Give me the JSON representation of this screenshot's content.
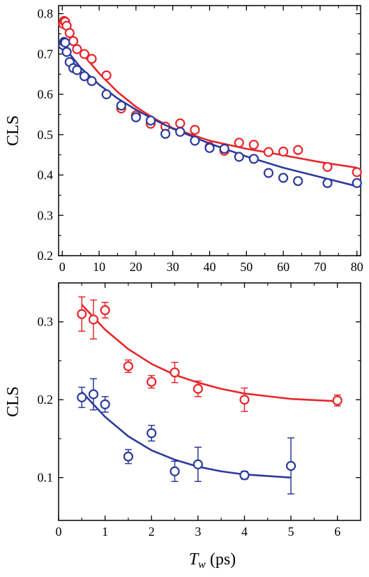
{
  "chart_data": [
    {
      "type": "scatter",
      "xlabel": "",
      "ylabel": "CLS",
      "xlim": [
        -1,
        81
      ],
      "ylim": [
        0.2,
        0.82
      ],
      "xticks": [
        0,
        10,
        20,
        30,
        40,
        50,
        60,
        70,
        80
      ],
      "yticks": [
        0.2,
        0.3,
        0.4,
        0.5,
        0.6,
        0.7,
        0.8
      ],
      "grid": false,
      "series": [
        {
          "color": "#e8262a",
          "marker": "open-circle",
          "points": [
            {
              "x": 0.2,
              "y": 0.775
            },
            {
              "x": 0.5,
              "y": 0.782
            },
            {
              "x": 0.8,
              "y": 0.78
            },
            {
              "x": 1.2,
              "y": 0.77
            },
            {
              "x": 2,
              "y": 0.752
            },
            {
              "x": 3,
              "y": 0.732
            },
            {
              "x": 4,
              "y": 0.712
            },
            {
              "x": 6,
              "y": 0.7
            },
            {
              "x": 8,
              "y": 0.688
            },
            {
              "x": 12,
              "y": 0.647
            },
            {
              "x": 16,
              "y": 0.565
            },
            {
              "x": 20,
              "y": 0.548
            },
            {
              "x": 24,
              "y": 0.527
            },
            {
              "x": 28,
              "y": 0.52
            },
            {
              "x": 32,
              "y": 0.528
            },
            {
              "x": 36,
              "y": 0.512
            },
            {
              "x": 40,
              "y": 0.47
            },
            {
              "x": 44,
              "y": 0.46
            },
            {
              "x": 48,
              "y": 0.48
            },
            {
              "x": 52,
              "y": 0.475
            },
            {
              "x": 56,
              "y": 0.457
            },
            {
              "x": 60,
              "y": 0.458
            },
            {
              "x": 64,
              "y": 0.462
            },
            {
              "x": 72,
              "y": 0.42
            },
            {
              "x": 80,
              "y": 0.407
            }
          ],
          "fit_curve": [
            {
              "x": 0,
              "y": 0.775
            },
            {
              "x": 2,
              "y": 0.745
            },
            {
              "x": 5,
              "y": 0.706
            },
            {
              "x": 10,
              "y": 0.652
            },
            {
              "x": 15,
              "y": 0.606
            },
            {
              "x": 20,
              "y": 0.569
            },
            {
              "x": 25,
              "y": 0.54
            },
            {
              "x": 30,
              "y": 0.516
            },
            {
              "x": 40,
              "y": 0.485
            },
            {
              "x": 50,
              "y": 0.465
            },
            {
              "x": 60,
              "y": 0.449
            },
            {
              "x": 70,
              "y": 0.432
            },
            {
              "x": 80,
              "y": 0.418
            }
          ]
        },
        {
          "color": "#2b3a9b",
          "marker": "open-circle",
          "points": [
            {
              "x": 0.2,
              "y": 0.722
            },
            {
              "x": 0.5,
              "y": 0.73
            },
            {
              "x": 0.8,
              "y": 0.728
            },
            {
              "x": 1.2,
              "y": 0.705
            },
            {
              "x": 2,
              "y": 0.68
            },
            {
              "x": 3,
              "y": 0.665
            },
            {
              "x": 4,
              "y": 0.66
            },
            {
              "x": 6,
              "y": 0.645
            },
            {
              "x": 8,
              "y": 0.633
            },
            {
              "x": 12,
              "y": 0.6
            },
            {
              "x": 16,
              "y": 0.572
            },
            {
              "x": 20,
              "y": 0.543
            },
            {
              "x": 24,
              "y": 0.535
            },
            {
              "x": 28,
              "y": 0.502
            },
            {
              "x": 32,
              "y": 0.507
            },
            {
              "x": 36,
              "y": 0.485
            },
            {
              "x": 40,
              "y": 0.467
            },
            {
              "x": 44,
              "y": 0.465
            },
            {
              "x": 48,
              "y": 0.445
            },
            {
              "x": 52,
              "y": 0.44
            },
            {
              "x": 56,
              "y": 0.405
            },
            {
              "x": 60,
              "y": 0.393
            },
            {
              "x": 64,
              "y": 0.385
            },
            {
              "x": 72,
              "y": 0.38
            },
            {
              "x": 80,
              "y": 0.38
            }
          ],
          "fit_curve": [
            {
              "x": 0,
              "y": 0.73
            },
            {
              "x": 2,
              "y": 0.7
            },
            {
              "x": 5,
              "y": 0.666
            },
            {
              "x": 10,
              "y": 0.624
            },
            {
              "x": 15,
              "y": 0.59
            },
            {
              "x": 20,
              "y": 0.562
            },
            {
              "x": 25,
              "y": 0.537
            },
            {
              "x": 30,
              "y": 0.515
            },
            {
              "x": 40,
              "y": 0.478
            },
            {
              "x": 50,
              "y": 0.446
            },
            {
              "x": 60,
              "y": 0.418
            },
            {
              "x": 70,
              "y": 0.395
            },
            {
              "x": 80,
              "y": 0.372
            }
          ]
        }
      ]
    },
    {
      "type": "scatter",
      "xlabel": "T_w (ps)",
      "xlabel_main": "T",
      "xlabel_sub": "w",
      "xlabel_unit": " (ps)",
      "ylabel": "CLS",
      "xlim": [
        0,
        6.5
      ],
      "ylim": [
        0.045,
        0.35
      ],
      "xticks": [
        0,
        1,
        2,
        3,
        4,
        5,
        6
      ],
      "yticks": [
        0.1,
        0.2,
        0.3
      ],
      "grid": false,
      "series": [
        {
          "color": "#e8262a",
          "marker": "open-circle",
          "points": [
            {
              "x": 0.5,
              "y": 0.31,
              "err": 0.022
            },
            {
              "x": 0.75,
              "y": 0.303,
              "err": 0.025
            },
            {
              "x": 1.0,
              "y": 0.315,
              "err": 0.01
            },
            {
              "x": 1.5,
              "y": 0.243,
              "err": 0.008
            },
            {
              "x": 2.0,
              "y": 0.223,
              "err": 0.008
            },
            {
              "x": 2.5,
              "y": 0.235,
              "err": 0.013
            },
            {
              "x": 3.0,
              "y": 0.214,
              "err": 0.01
            },
            {
              "x": 4.0,
              "y": 0.2,
              "err": 0.015
            },
            {
              "x": 6.0,
              "y": 0.199,
              "err": 0.007
            }
          ],
          "fit_curve": [
            {
              "x": 0.5,
              "y": 0.322
            },
            {
              "x": 1.0,
              "y": 0.29
            },
            {
              "x": 1.5,
              "y": 0.265
            },
            {
              "x": 2.0,
              "y": 0.246
            },
            {
              "x": 2.5,
              "y": 0.232
            },
            {
              "x": 3.0,
              "y": 0.222
            },
            {
              "x": 3.5,
              "y": 0.214
            },
            {
              "x": 4.0,
              "y": 0.208
            },
            {
              "x": 5.0,
              "y": 0.201
            },
            {
              "x": 6.0,
              "y": 0.198
            }
          ]
        },
        {
          "color": "#2b3a9b",
          "marker": "open-circle",
          "points": [
            {
              "x": 0.5,
              "y": 0.203,
              "err": 0.013
            },
            {
              "x": 0.75,
              "y": 0.207,
              "err": 0.02
            },
            {
              "x": 1.0,
              "y": 0.194,
              "err": 0.01
            },
            {
              "x": 1.5,
              "y": 0.127,
              "err": 0.009
            },
            {
              "x": 2.0,
              "y": 0.157,
              "err": 0.01
            },
            {
              "x": 2.5,
              "y": 0.108,
              "err": 0.013
            },
            {
              "x": 3.0,
              "y": 0.117,
              "err": 0.022
            },
            {
              "x": 4.0,
              "y": 0.103,
              "err": 0.005
            },
            {
              "x": 5.0,
              "y": 0.115,
              "err": 0.036
            }
          ],
          "fit_curve": [
            {
              "x": 0.5,
              "y": 0.21
            },
            {
              "x": 1.0,
              "y": 0.178
            },
            {
              "x": 1.5,
              "y": 0.153
            },
            {
              "x": 2.0,
              "y": 0.135
            },
            {
              "x": 2.5,
              "y": 0.123
            },
            {
              "x": 3.0,
              "y": 0.114
            },
            {
              "x": 3.5,
              "y": 0.108
            },
            {
              "x": 4.0,
              "y": 0.104
            },
            {
              "x": 4.5,
              "y": 0.102
            },
            {
              "x": 5.0,
              "y": 0.1
            }
          ]
        }
      ]
    }
  ]
}
